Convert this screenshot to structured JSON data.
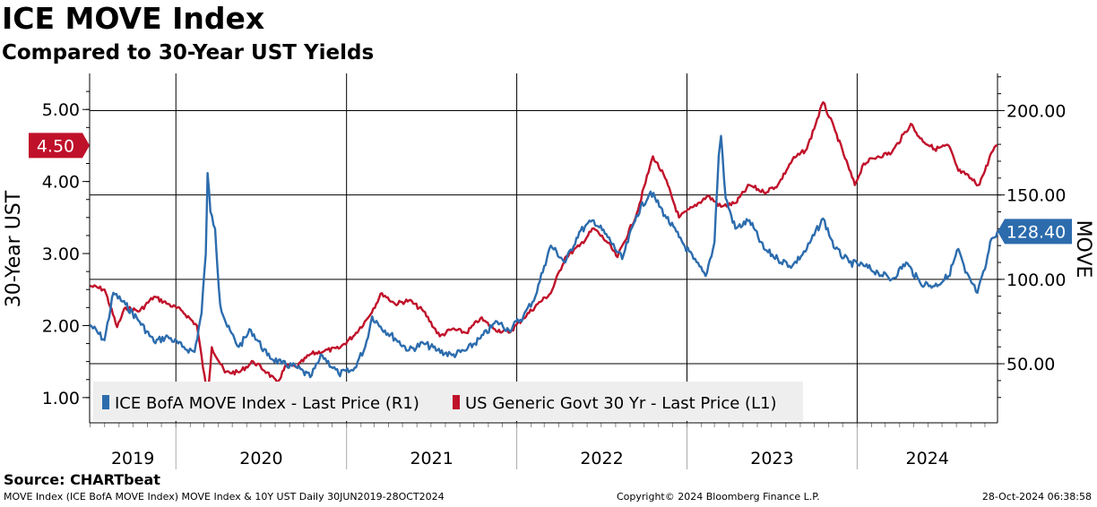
{
  "header": {
    "title": "ICE MOVE Index",
    "subtitle": "Compared to 30-Year UST Yields"
  },
  "footer": {
    "source": "Source: CHARTbeat",
    "description": "MOVE Index (ICE BofA MOVE Index) MOVE Index & 10Y UST  Daily 30JUN2019-28OCT2024",
    "copyright": "Copyright© 2024 Bloomberg Finance L.P.",
    "timestamp": "28-Oct-2024 06:38:58"
  },
  "chart_data": {
    "type": "line",
    "title": "ICE MOVE Index",
    "subtitle": "Compared to 30-Year UST Yields",
    "x_axis": {
      "range": [
        "2019-06-30",
        "2024-10-28"
      ],
      "year_labels": [
        "2019",
        "2020",
        "2021",
        "2022",
        "2023",
        "2024"
      ]
    },
    "y_left": {
      "label": "30-Year UST",
      "range": [
        0.65,
        5.5
      ],
      "ticks": [
        "1.00",
        "2.00",
        "3.00",
        "4.00",
        "5.00"
      ],
      "last_value_label": "4.50"
    },
    "y_right": {
      "label": "MOVE",
      "range": [
        15,
        222
      ],
      "ticks": [
        "50.00",
        "100.00",
        "150.00",
        "200.00"
      ],
      "last_value_label": "128.40"
    },
    "grid": true,
    "legend_position": "bottom-left",
    "colors": {
      "move": "#2c6cad",
      "ust": "#c0112a"
    },
    "series": [
      {
        "name": "ICE BofA MOVE Index - Last Price (R1)",
        "axis": "right",
        "color": "#2c6cad",
        "points": [
          [
            "2019-07-01",
            73
          ],
          [
            "2019-08-01",
            64
          ],
          [
            "2019-08-20",
            92
          ],
          [
            "2019-09-15",
            85
          ],
          [
            "2019-10-15",
            75
          ],
          [
            "2019-11-15",
            63
          ],
          [
            "2019-12-15",
            66
          ],
          [
            "2020-01-15",
            60
          ],
          [
            "2020-02-10",
            57
          ],
          [
            "2020-02-25",
            80
          ],
          [
            "2020-03-05",
            115
          ],
          [
            "2020-03-09",
            163
          ],
          [
            "2020-03-15",
            140
          ],
          [
            "2020-03-25",
            130
          ],
          [
            "2020-04-05",
            85
          ],
          [
            "2020-04-20",
            72
          ],
          [
            "2020-05-15",
            60
          ],
          [
            "2020-06-10",
            70
          ],
          [
            "2020-07-15",
            55
          ],
          [
            "2020-08-15",
            50
          ],
          [
            "2020-09-15",
            48
          ],
          [
            "2020-10-15",
            42
          ],
          [
            "2020-11-10",
            55
          ],
          [
            "2020-12-15",
            44
          ],
          [
            "2021-01-15",
            46
          ],
          [
            "2021-02-10",
            60
          ],
          [
            "2021-02-25",
            78
          ],
          [
            "2021-03-15",
            72
          ],
          [
            "2021-04-15",
            65
          ],
          [
            "2021-05-15",
            58
          ],
          [
            "2021-06-15",
            62
          ],
          [
            "2021-07-15",
            58
          ],
          [
            "2021-08-15",
            55
          ],
          [
            "2021-09-15",
            58
          ],
          [
            "2021-10-15",
            65
          ],
          [
            "2021-11-20",
            75
          ],
          [
            "2021-12-15",
            70
          ],
          [
            "2022-01-15",
            78
          ],
          [
            "2022-02-10",
            90
          ],
          [
            "2022-03-01",
            108
          ],
          [
            "2022-03-15",
            120
          ],
          [
            "2022-04-15",
            110
          ],
          [
            "2022-05-15",
            128
          ],
          [
            "2022-06-15",
            135
          ],
          [
            "2022-07-15",
            125
          ],
          [
            "2022-08-15",
            112
          ],
          [
            "2022-09-15",
            138
          ],
          [
            "2022-10-15",
            152
          ],
          [
            "2022-11-15",
            138
          ],
          [
            "2022-12-15",
            125
          ],
          [
            "2023-01-15",
            112
          ],
          [
            "2023-02-10",
            102
          ],
          [
            "2023-03-01",
            122
          ],
          [
            "2023-03-10",
            173
          ],
          [
            "2023-03-15",
            185
          ],
          [
            "2023-03-25",
            148
          ],
          [
            "2023-04-15",
            130
          ],
          [
            "2023-05-15",
            135
          ],
          [
            "2023-06-15",
            118
          ],
          [
            "2023-07-15",
            112
          ],
          [
            "2023-08-15",
            108
          ],
          [
            "2023-09-15",
            118
          ],
          [
            "2023-10-20",
            136
          ],
          [
            "2023-11-15",
            118
          ],
          [
            "2023-12-15",
            110
          ],
          [
            "2024-01-15",
            108
          ],
          [
            "2024-02-15",
            104
          ],
          [
            "2024-03-15",
            100
          ],
          [
            "2024-04-15",
            110
          ],
          [
            "2024-05-15",
            98
          ],
          [
            "2024-06-15",
            96
          ],
          [
            "2024-07-15",
            102
          ],
          [
            "2024-08-05",
            118
          ],
          [
            "2024-08-20",
            104
          ],
          [
            "2024-09-15",
            92
          ],
          [
            "2024-10-01",
            106
          ],
          [
            "2024-10-15",
            124
          ],
          [
            "2024-10-28",
            128.4
          ]
        ]
      },
      {
        "name": "US Generic Govt 30 Yr - Last Price (L1)",
        "axis": "left",
        "color": "#c0112a",
        "points": [
          [
            "2019-07-01",
            2.55
          ],
          [
            "2019-08-01",
            2.5
          ],
          [
            "2019-08-28",
            1.98
          ],
          [
            "2019-09-15",
            2.25
          ],
          [
            "2019-10-15",
            2.2
          ],
          [
            "2019-11-15",
            2.4
          ],
          [
            "2019-12-15",
            2.3
          ],
          [
            "2020-01-15",
            2.2
          ],
          [
            "2020-02-15",
            2.0
          ],
          [
            "2020-03-09",
            1.0
          ],
          [
            "2020-03-18",
            1.7
          ],
          [
            "2020-04-15",
            1.35
          ],
          [
            "2020-05-15",
            1.35
          ],
          [
            "2020-06-15",
            1.5
          ],
          [
            "2020-07-15",
            1.35
          ],
          [
            "2020-08-05",
            1.2
          ],
          [
            "2020-08-25",
            1.45
          ],
          [
            "2020-09-15",
            1.42
          ],
          [
            "2020-10-15",
            1.6
          ],
          [
            "2020-11-15",
            1.65
          ],
          [
            "2020-12-15",
            1.68
          ],
          [
            "2021-01-15",
            1.85
          ],
          [
            "2021-02-15",
            2.1
          ],
          [
            "2021-03-18",
            2.45
          ],
          [
            "2021-04-15",
            2.3
          ],
          [
            "2021-05-15",
            2.35
          ],
          [
            "2021-06-15",
            2.2
          ],
          [
            "2021-07-20",
            1.85
          ],
          [
            "2021-08-15",
            1.95
          ],
          [
            "2021-09-15",
            1.9
          ],
          [
            "2021-10-15",
            2.1
          ],
          [
            "2021-11-15",
            1.95
          ],
          [
            "2021-12-15",
            1.9
          ],
          [
            "2022-01-15",
            2.1
          ],
          [
            "2022-02-15",
            2.3
          ],
          [
            "2022-03-15",
            2.45
          ],
          [
            "2022-04-15",
            2.95
          ],
          [
            "2022-05-15",
            3.1
          ],
          [
            "2022-06-15",
            3.35
          ],
          [
            "2022-07-15",
            3.15
          ],
          [
            "2022-08-05",
            2.95
          ],
          [
            "2022-09-15",
            3.55
          ],
          [
            "2022-10-20",
            4.35
          ],
          [
            "2022-11-15",
            4.05
          ],
          [
            "2022-12-15",
            3.5
          ],
          [
            "2023-01-15",
            3.65
          ],
          [
            "2023-02-15",
            3.8
          ],
          [
            "2023-03-15",
            3.65
          ],
          [
            "2023-04-15",
            3.7
          ],
          [
            "2023-05-15",
            3.95
          ],
          [
            "2023-06-15",
            3.85
          ],
          [
            "2023-07-15",
            3.95
          ],
          [
            "2023-08-15",
            4.3
          ],
          [
            "2023-09-15",
            4.45
          ],
          [
            "2023-10-20",
            5.1
          ],
          [
            "2023-11-15",
            4.7
          ],
          [
            "2023-12-27",
            3.95
          ],
          [
            "2024-01-15",
            4.25
          ],
          [
            "2024-02-15",
            4.35
          ],
          [
            "2024-03-15",
            4.4
          ],
          [
            "2024-04-25",
            4.8
          ],
          [
            "2024-05-15",
            4.6
          ],
          [
            "2024-06-15",
            4.45
          ],
          [
            "2024-07-15",
            4.5
          ],
          [
            "2024-08-05",
            4.15
          ],
          [
            "2024-08-20",
            4.1
          ],
          [
            "2024-09-17",
            3.95
          ],
          [
            "2024-10-01",
            4.15
          ],
          [
            "2024-10-15",
            4.4
          ],
          [
            "2024-10-28",
            4.5
          ]
        ]
      }
    ]
  }
}
